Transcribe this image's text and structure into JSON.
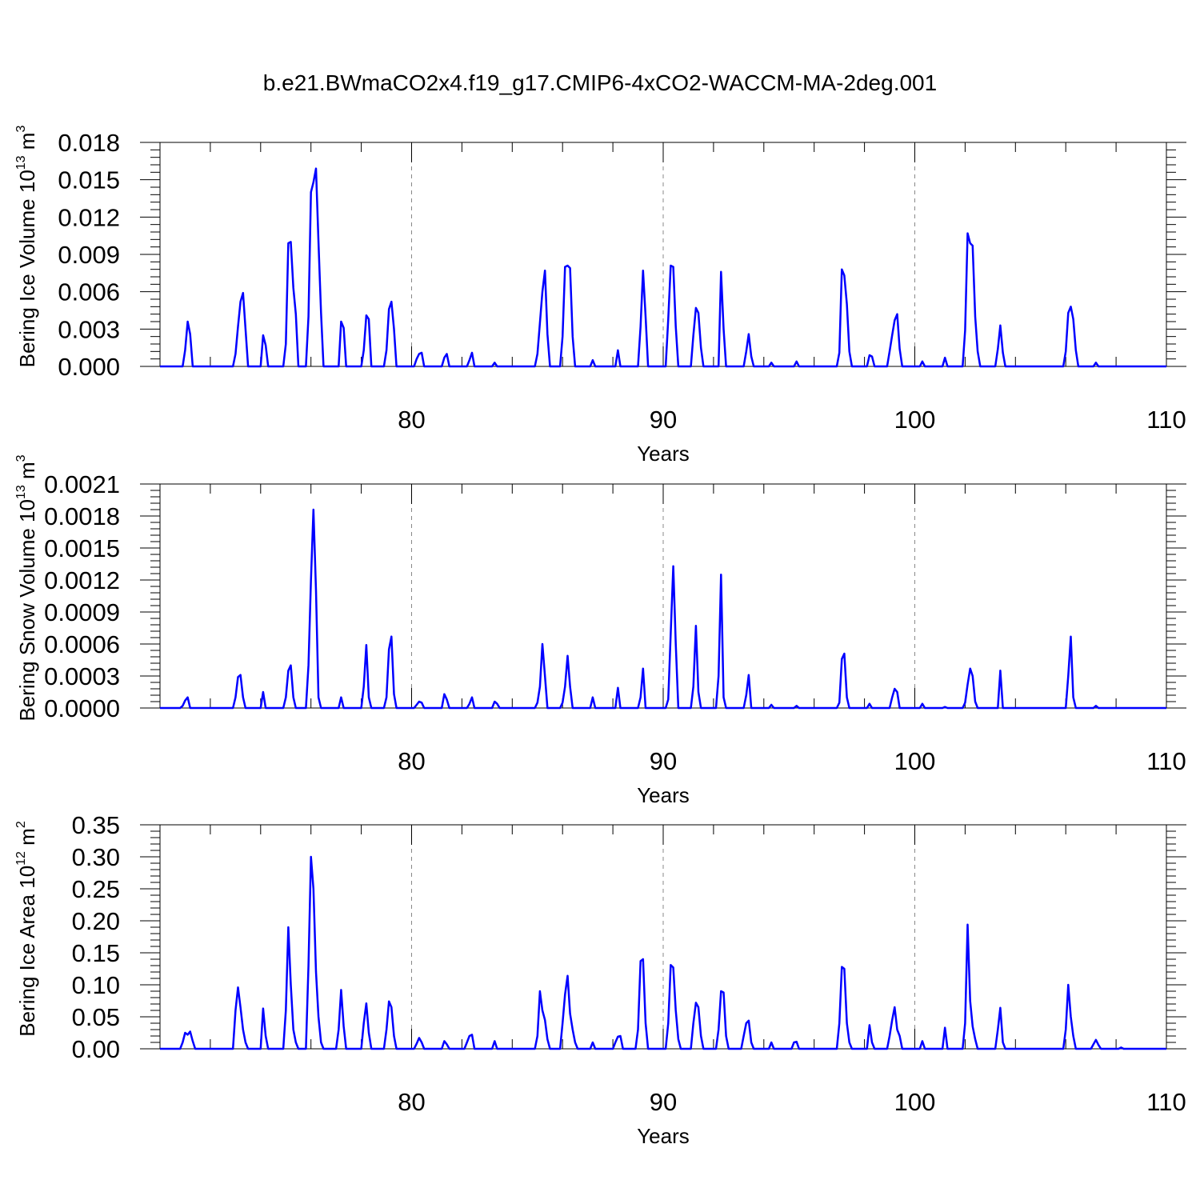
{
  "title": "b.e21.BWmaCO2x4.f19_g17.CMIP6-4xCO2-WACCM-MA-2deg.001",
  "line_color": "#0000ff",
  "chart_data": [
    {
      "type": "line",
      "ylabel": "Bering Ice Volume 10",
      "ylabel_exp": "13",
      "ylabel_unit": " m",
      "ylabel_unit_exp": "3",
      "xlabel": "Years",
      "xlim": [
        70,
        110
      ],
      "ylim": [
        0,
        0.018
      ],
      "xticks": [
        80,
        90,
        100,
        110
      ],
      "yticks": [
        "0.000",
        "0.003",
        "0.006",
        "0.009",
        "0.012",
        "0.015",
        "0.018"
      ],
      "grid_x": [
        80,
        90,
        100
      ],
      "series": [
        {
          "peaks": [
            [
              71.0,
              0.0013,
              71.1,
              0.0036,
              71.2,
              0.0026
            ],
            [
              73.0,
              0.001,
              73.1,
              0.0032,
              73.2,
              0.0052,
              73.3,
              0.0059,
              73.4,
              0.003
            ],
            [
              74.1,
              0.0025,
              74.2,
              0.0017
            ],
            [
              75.0,
              0.0018,
              75.1,
              0.0099,
              75.2,
              0.01,
              75.3,
              0.0063,
              75.4,
              0.0042
            ],
            [
              75.9,
              0.004,
              76.0,
              0.014,
              76.1,
              0.0148,
              76.2,
              0.0159,
              76.3,
              0.01,
              76.4,
              0.0043
            ],
            [
              77.2,
              0.0036,
              77.3,
              0.0031
            ],
            [
              78.1,
              0.0013,
              78.2,
              0.0041,
              78.3,
              0.0038
            ],
            [
              79.0,
              0.0013,
              79.1,
              0.0046,
              79.2,
              0.0052,
              79.3,
              0.003
            ],
            [
              80.2,
              0.0006,
              80.3,
              0.001,
              80.4,
              0.0011
            ],
            [
              81.3,
              0.0007,
              81.4,
              0.001
            ],
            [
              82.3,
              0.0005,
              82.4,
              0.0011
            ],
            [
              83.3,
              0.0003
            ],
            [
              85.0,
              0.001,
              85.1,
              0.0035,
              85.2,
              0.006,
              85.3,
              0.0077,
              85.4,
              0.0026
            ],
            [
              86.0,
              0.0024,
              86.1,
              0.008,
              86.2,
              0.0081,
              86.3,
              0.0079,
              86.4,
              0.0024
            ],
            [
              87.2,
              0.0005
            ],
            [
              88.2,
              0.0013
            ],
            [
              89.1,
              0.0032,
              89.2,
              0.0077,
              89.3,
              0.004
            ],
            [
              90.2,
              0.0038,
              90.3,
              0.0081,
              90.4,
              0.008,
              90.5,
              0.0032
            ],
            [
              91.2,
              0.0025,
              91.3,
              0.0047,
              91.4,
              0.0043,
              91.5,
              0.0015
            ],
            [
              92.3,
              0.0076,
              92.4,
              0.003
            ],
            [
              93.3,
              0.0012,
              93.4,
              0.0026,
              93.5,
              0.0008
            ],
            [
              94.3,
              0.0003
            ],
            [
              95.3,
              0.0004
            ],
            [
              97.0,
              0.0011,
              97.1,
              0.0078,
              97.2,
              0.0073,
              97.3,
              0.005,
              97.4,
              0.0012
            ],
            [
              98.2,
              0.0009,
              98.3,
              0.0008
            ],
            [
              99.0,
              0.0012,
              99.1,
              0.0025,
              99.2,
              0.0037,
              99.3,
              0.0042,
              99.4,
              0.0014
            ],
            [
              100.3,
              0.0004
            ],
            [
              101.2,
              0.0007
            ],
            [
              102.0,
              0.0029,
              102.1,
              0.0107,
              102.2,
              0.0099,
              102.3,
              0.0097,
              102.4,
              0.004,
              102.5,
              0.0012
            ],
            [
              103.3,
              0.0014,
              103.4,
              0.0033,
              103.5,
              0.0011
            ],
            [
              106.0,
              0.0012,
              106.1,
              0.0043,
              106.2,
              0.0048,
              106.3,
              0.0038,
              106.4,
              0.0013
            ],
            [
              107.2,
              0.0003
            ]
          ]
        }
      ]
    },
    {
      "type": "line",
      "ylabel": "Bering Snow Volume 10",
      "ylabel_exp": "13",
      "ylabel_unit": " m",
      "ylabel_unit_exp": "3",
      "xlabel": "Years",
      "xlim": [
        70,
        110
      ],
      "ylim": [
        0,
        0.0021
      ],
      "xticks": [
        80,
        90,
        100,
        110
      ],
      "yticks": [
        "0.0000",
        "0.0003",
        "0.0006",
        "0.0009",
        "0.0012",
        "0.0015",
        "0.0018",
        "0.0021"
      ],
      "grid_x": [
        80,
        90,
        100
      ],
      "series": [
        {
          "peaks": [
            [
              70.9,
              2e-05,
              71.0,
              7e-05,
              71.1,
              0.0001
            ],
            [
              73.0,
              0.0001,
              73.1,
              0.00029,
              73.2,
              0.00031,
              73.3,
              0.0001
            ],
            [
              74.1,
              0.00015
            ],
            [
              75.0,
              0.0001,
              75.1,
              0.00035,
              75.2,
              0.0004,
              75.3,
              0.0001
            ],
            [
              75.9,
              0.0004,
              76.0,
              0.0012,
              76.1,
              0.00186,
              76.2,
              0.0011,
              76.3,
              0.0001
            ],
            [
              77.2,
              0.0001
            ],
            [
              78.1,
              0.0002,
              78.2,
              0.00059,
              78.3,
              0.0001
            ],
            [
              79.0,
              0.0001,
              79.1,
              0.00055,
              79.2,
              0.00067,
              79.3,
              0.00013
            ],
            [
              80.2,
              3e-05,
              80.3,
              6e-05,
              80.4,
              5e-05
            ],
            [
              81.3,
              0.00013,
              81.4,
              8e-05
            ],
            [
              82.3,
              4e-05,
              82.4,
              0.0001
            ],
            [
              83.3,
              6e-05,
              83.4,
              4e-05
            ],
            [
              85.0,
              5e-05,
              85.1,
              0.0002,
              85.2,
              0.0006,
              85.3,
              0.0003
            ],
            [
              86.0,
              5e-05,
              86.1,
              0.0002,
              86.2,
              0.00049,
              86.3,
              0.0002
            ],
            [
              87.2,
              0.0001
            ],
            [
              88.2,
              0.00019
            ],
            [
              89.1,
              0.0001,
              89.2,
              0.00037
            ],
            [
              90.2,
              8e-05,
              90.3,
              0.0007,
              90.4,
              0.00133,
              90.5,
              0.0006
            ],
            [
              91.2,
              0.0002,
              91.3,
              0.00077,
              91.4,
              0.00015
            ],
            [
              92.2,
              0.0003,
              92.3,
              0.00125,
              92.4,
              0.0001
            ],
            [
              93.3,
              0.00012,
              93.4,
              0.00031
            ],
            [
              94.3,
              3e-05
            ],
            [
              95.3,
              2e-05
            ],
            [
              97.0,
              5e-05,
              97.1,
              0.00046,
              97.2,
              0.00051,
              97.3,
              0.0001
            ],
            [
              98.2,
              4e-05
            ],
            [
              99.1,
              0.0001,
              99.2,
              0.00018,
              99.3,
              0.00015
            ],
            [
              100.3,
              4e-05
            ],
            [
              101.2,
              1e-05
            ],
            [
              102.0,
              5e-05,
              102.1,
              0.00022,
              102.2,
              0.00037,
              102.3,
              0.0003,
              102.4,
              6e-05
            ],
            [
              103.4,
              0.00035
            ],
            [
              106.1,
              0.0003,
              106.2,
              0.00067,
              106.3,
              0.0001
            ],
            [
              107.2,
              2e-05
            ]
          ]
        }
      ]
    },
    {
      "type": "line",
      "ylabel": "Bering Ice Area 10",
      "ylabel_exp": "12",
      "ylabel_unit": " m",
      "ylabel_unit_exp": "2",
      "xlabel": "Years",
      "xlim": [
        70,
        110
      ],
      "ylim": [
        0,
        0.35
      ],
      "xticks": [
        80,
        90,
        100,
        110
      ],
      "yticks": [
        "0.00",
        "0.05",
        "0.10",
        "0.15",
        "0.20",
        "0.25",
        "0.30",
        "0.35"
      ],
      "grid_x": [
        80,
        90,
        100
      ],
      "series": [
        {
          "peaks": [
            [
              70.9,
              0.01,
              71.0,
              0.025,
              71.1,
              0.022,
              71.2,
              0.027,
              71.3,
              0.012
            ],
            [
              73.0,
              0.06,
              73.1,
              0.096,
              73.2,
              0.065,
              73.3,
              0.03,
              73.4,
              0.01
            ],
            [
              74.1,
              0.063,
              74.2,
              0.02
            ],
            [
              75.0,
              0.06,
              75.1,
              0.19,
              75.2,
              0.1,
              75.3,
              0.03,
              75.4,
              0.01
            ],
            [
              75.9,
              0.13,
              76.0,
              0.3,
              76.1,
              0.25,
              76.2,
              0.12,
              76.3,
              0.05,
              76.4,
              0.01
            ],
            [
              77.1,
              0.03,
              77.2,
              0.092,
              77.3,
              0.035
            ],
            [
              78.1,
              0.04,
              78.2,
              0.071,
              78.3,
              0.025
            ],
            [
              79.0,
              0.03,
              79.1,
              0.074,
              79.2,
              0.065,
              79.3,
              0.02
            ],
            [
              80.2,
              0.008,
              80.3,
              0.017,
              80.4,
              0.01
            ],
            [
              81.3,
              0.012,
              81.4,
              0.007
            ],
            [
              82.2,
              0.01,
              82.3,
              0.02,
              82.4,
              0.022
            ],
            [
              83.3,
              0.012
            ],
            [
              85.0,
              0.02,
              85.1,
              0.09,
              85.2,
              0.06,
              85.3,
              0.045,
              85.4,
              0.015
            ],
            [
              86.0,
              0.04,
              86.1,
              0.085,
              86.2,
              0.114,
              86.3,
              0.055,
              86.4,
              0.03,
              86.5,
              0.01
            ],
            [
              87.2,
              0.01
            ],
            [
              88.1,
              0.01,
              88.2,
              0.019,
              88.3,
              0.02
            ],
            [
              89.0,
              0.03,
              89.1,
              0.137,
              89.2,
              0.14,
              89.3,
              0.04
            ],
            [
              90.2,
              0.04,
              90.3,
              0.131,
              90.4,
              0.127,
              90.5,
              0.06,
              90.6,
              0.015
            ],
            [
              91.2,
              0.04,
              91.3,
              0.072,
              91.4,
              0.065,
              91.5,
              0.02
            ],
            [
              92.2,
              0.03,
              92.3,
              0.09,
              92.4,
              0.088,
              92.5,
              0.02
            ],
            [
              93.2,
              0.02,
              93.3,
              0.04,
              93.4,
              0.044,
              93.5,
              0.01
            ],
            [
              94.3,
              0.01
            ],
            [
              95.2,
              0.01,
              95.3,
              0.011
            ],
            [
              97.0,
              0.04,
              97.1,
              0.128,
              97.2,
              0.125,
              97.3,
              0.04,
              97.4,
              0.01
            ],
            [
              98.2,
              0.037,
              98.3,
              0.01
            ],
            [
              99.0,
              0.02,
              99.1,
              0.045,
              99.2,
              0.065,
              99.3,
              0.03,
              99.4,
              0.02
            ],
            [
              100.3,
              0.012
            ],
            [
              101.2,
              0.033
            ],
            [
              102.0,
              0.04,
              102.1,
              0.194,
              102.2,
              0.075,
              102.3,
              0.035,
              102.4,
              0.015
            ],
            [
              103.3,
              0.03,
              103.4,
              0.064,
              103.5,
              0.01
            ],
            [
              106.0,
              0.03,
              106.1,
              0.1,
              106.2,
              0.05,
              106.3,
              0.02
            ],
            [
              107.1,
              0.007,
              107.2,
              0.014,
              107.3,
              0.006
            ],
            [
              108.2,
              0.002
            ]
          ]
        }
      ]
    }
  ]
}
